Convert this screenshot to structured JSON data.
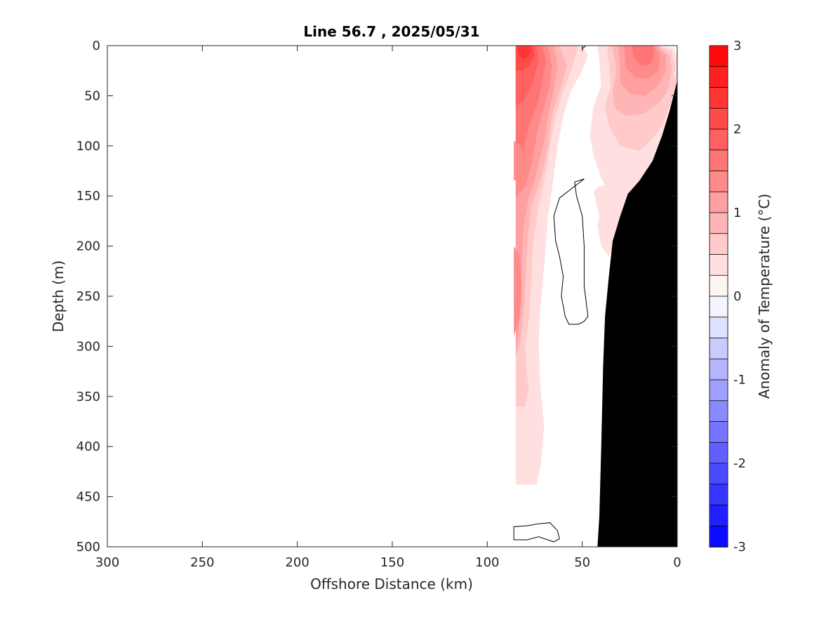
{
  "chart_data": {
    "type": "heatmap",
    "title": "Line 56.7 , 2025/05/31",
    "xlabel": "Offshore Distance (km)",
    "ylabel": "Depth (m)",
    "colorbar_label": "Anomaly of Temperature (°C)",
    "xlim": [
      300,
      0
    ],
    "ylim": [
      0,
      500
    ],
    "x_reversed": true,
    "y_reversed": true,
    "xticks": [
      {
        "value": 300,
        "label": "300"
      },
      {
        "value": 250,
        "label": "250"
      },
      {
        "value": 200,
        "label": "200"
      },
      {
        "value": 150,
        "label": "150"
      },
      {
        "value": 100,
        "label": "100"
      },
      {
        "value": 50,
        "label": "50"
      },
      {
        "value": 0,
        "label": "0"
      }
    ],
    "yticks": [
      {
        "value": 0,
        "label": "0"
      },
      {
        "value": 50,
        "label": "50"
      },
      {
        "value": 100,
        "label": "100"
      },
      {
        "value": 150,
        "label": "150"
      },
      {
        "value": 200,
        "label": "200"
      },
      {
        "value": 250,
        "label": "250"
      },
      {
        "value": 300,
        "label": "300"
      },
      {
        "value": 350,
        "label": "350"
      },
      {
        "value": 400,
        "label": "400"
      },
      {
        "value": 450,
        "label": "450"
      },
      {
        "value": 500,
        "label": "500"
      }
    ],
    "colorbar": {
      "clim": [
        -3,
        3
      ],
      "levels": 24,
      "low_color": "#0000ff",
      "mid_color": "#ffffff",
      "high_color": "#ff0000",
      "ticks": [
        {
          "value": 3,
          "label": "3"
        },
        {
          "value": 2,
          "label": "2"
        },
        {
          "value": 1,
          "label": "1"
        },
        {
          "value": 0,
          "label": "0"
        },
        {
          "value": -1,
          "label": "-1"
        },
        {
          "value": -2,
          "label": "-2"
        },
        {
          "value": -3,
          "label": "-3"
        }
      ]
    },
    "data_extent": {
      "x_max": 85,
      "y_max_at_offshore_edge": 410
    },
    "shelf_color": "#000000",
    "shelf": [
      [
        0,
        35
      ],
      [
        4,
        65
      ],
      [
        8,
        90
      ],
      [
        13,
        115
      ],
      [
        20,
        135
      ],
      [
        26,
        148
      ],
      [
        30,
        170
      ],
      [
        34,
        195
      ],
      [
        36,
        230
      ],
      [
        38,
        270
      ],
      [
        39,
        320
      ],
      [
        40,
        400
      ],
      [
        41,
        470
      ],
      [
        42,
        500
      ],
      [
        0,
        500
      ]
    ],
    "anomaly_regions": [
      {
        "value": 0.375,
        "points": [
          [
            85,
            0
          ],
          [
            70,
            0
          ],
          [
            58,
            0
          ],
          [
            50,
            0
          ],
          [
            47,
            10
          ],
          [
            50,
            25
          ],
          [
            56,
            45
          ],
          [
            60,
            70
          ],
          [
            63,
            100
          ],
          [
            65,
            130
          ],
          [
            68,
            170
          ],
          [
            70,
            220
          ],
          [
            72,
            260
          ],
          [
            73,
            300
          ],
          [
            72,
            340
          ],
          [
            70,
            380
          ],
          [
            72,
            420
          ],
          [
            74,
            438
          ],
          [
            85,
            438
          ]
        ]
      },
      {
        "value": 0.375,
        "points": [
          [
            42,
            0
          ],
          [
            25,
            0
          ],
          [
            10,
            0
          ],
          [
            2,
            2
          ],
          [
            0,
            10
          ],
          [
            0,
            35
          ],
          [
            4,
            65
          ],
          [
            8,
            90
          ],
          [
            13,
            115
          ],
          [
            20,
            135
          ],
          [
            26,
            148
          ],
          [
            30,
            170
          ],
          [
            32,
            195
          ],
          [
            36,
            210
          ],
          [
            40,
            200
          ],
          [
            42,
            180
          ],
          [
            41,
            170
          ],
          [
            44,
            145
          ],
          [
            41,
            140
          ],
          [
            38,
            140
          ],
          [
            40,
            132
          ],
          [
            44,
            110
          ],
          [
            46,
            90
          ],
          [
            44,
            60
          ],
          [
            40,
            40
          ],
          [
            41,
            15
          ]
        ]
      },
      {
        "value": 0.625,
        "points": [
          [
            85,
            0
          ],
          [
            70,
            0
          ],
          [
            60,
            0
          ],
          [
            52,
            0
          ],
          [
            55,
            20
          ],
          [
            60,
            45
          ],
          [
            64,
            70
          ],
          [
            67,
            100
          ],
          [
            69,
            125
          ],
          [
            73,
            160
          ],
          [
            76,
            200
          ],
          [
            77,
            240
          ],
          [
            78,
            270
          ],
          [
            80,
            300
          ],
          [
            79,
            330
          ],
          [
            78,
            340
          ],
          [
            80,
            360
          ],
          [
            85,
            360
          ]
        ]
      },
      {
        "value": 0.625,
        "points": [
          [
            37,
            0
          ],
          [
            25,
            0
          ],
          [
            10,
            0
          ],
          [
            3,
            5
          ],
          [
            1,
            20
          ],
          [
            2,
            30
          ],
          [
            0,
            35
          ],
          [
            4,
            60
          ],
          [
            8,
            80
          ],
          [
            14,
            95
          ],
          [
            20,
            105
          ],
          [
            30,
            100
          ],
          [
            36,
            80
          ],
          [
            38,
            60
          ],
          [
            35,
            40
          ],
          [
            36,
            15
          ]
        ]
      },
      {
        "value": 0.875,
        "points": [
          [
            85,
            0
          ],
          [
            72,
            0
          ],
          [
            62,
            0
          ],
          [
            58,
            20
          ],
          [
            62,
            45
          ],
          [
            66,
            70
          ],
          [
            68,
            100
          ],
          [
            70,
            120
          ],
          [
            73,
            140
          ],
          [
            77,
            160
          ],
          [
            79,
            200
          ],
          [
            80,
            240
          ],
          [
            81,
            270
          ],
          [
            83,
            300
          ],
          [
            85,
            310
          ]
        ]
      },
      {
        "value": 0.875,
        "points": [
          [
            34,
            0
          ],
          [
            22,
            0
          ],
          [
            10,
            0
          ],
          [
            4,
            10
          ],
          [
            3,
            25
          ],
          [
            5,
            45
          ],
          [
            10,
            58
          ],
          [
            18,
            68
          ],
          [
            27,
            70
          ],
          [
            33,
            62
          ],
          [
            34,
            45
          ],
          [
            32,
            25
          ]
        ]
      },
      {
        "value": 1.125,
        "points": [
          [
            85,
            0
          ],
          [
            72,
            0
          ],
          [
            65,
            0
          ],
          [
            63,
            20
          ],
          [
            65,
            45
          ],
          [
            68,
            70
          ],
          [
            70,
            95
          ],
          [
            72,
            110
          ],
          [
            75,
            135
          ],
          [
            78,
            150
          ],
          [
            81,
            180
          ],
          [
            82,
            230
          ],
          [
            82,
            260
          ],
          [
            84,
            290
          ],
          [
            85,
            300
          ]
        ]
      },
      {
        "value": 1.125,
        "points": [
          [
            31,
            0
          ],
          [
            21,
            0
          ],
          [
            11,
            0
          ],
          [
            6,
            10
          ],
          [
            6,
            25
          ],
          [
            10,
            40
          ],
          [
            17,
            50
          ],
          [
            25,
            48
          ],
          [
            30,
            38
          ],
          [
            30,
            20
          ]
        ]
      },
      {
        "value": 1.375,
        "points": [
          [
            85,
            0
          ],
          [
            76,
            0
          ],
          [
            68,
            0
          ],
          [
            66,
            20
          ],
          [
            67,
            40
          ],
          [
            70,
            60
          ],
          [
            73,
            80
          ],
          [
            75,
            100
          ],
          [
            77,
            120
          ],
          [
            80,
            140
          ],
          [
            84,
            150
          ],
          [
            85,
            150
          ]
        ]
      },
      {
        "value": 1.375,
        "points": [
          [
            28,
            0
          ],
          [
            20,
            0
          ],
          [
            12,
            0
          ],
          [
            9,
            10
          ],
          [
            10,
            25
          ],
          [
            15,
            33
          ],
          [
            22,
            32
          ],
          [
            27,
            22
          ]
        ]
      },
      {
        "value": 1.625,
        "points": [
          [
            85,
            0
          ],
          [
            78,
            0
          ],
          [
            71,
            0
          ],
          [
            69,
            15
          ],
          [
            71,
            35
          ],
          [
            73,
            55
          ],
          [
            76,
            70
          ],
          [
            78,
            80
          ],
          [
            80,
            95
          ],
          [
            82,
            110
          ],
          [
            85,
            130
          ]
        ]
      },
      {
        "value": 1.625,
        "points": [
          [
            24,
            0
          ],
          [
            18,
            0
          ],
          [
            13,
            0
          ],
          [
            12,
            10
          ],
          [
            14,
            18
          ],
          [
            19,
            20
          ],
          [
            23,
            12
          ]
        ]
      },
      {
        "value": 1.875,
        "points": [
          [
            85,
            0
          ],
          [
            80,
            0
          ],
          [
            74,
            0
          ],
          [
            73,
            15
          ],
          [
            75,
            30
          ],
          [
            78,
            45
          ],
          [
            81,
            55
          ],
          [
            85,
            60
          ]
        ]
      },
      {
        "value": 2.125,
        "points": [
          [
            85,
            0
          ],
          [
            80,
            0
          ],
          [
            76,
            0
          ],
          [
            75,
            10
          ],
          [
            78,
            20
          ],
          [
            82,
            25
          ],
          [
            85,
            25
          ]
        ]
      },
      {
        "value": 2.375,
        "points": [
          [
            84,
            0
          ],
          [
            80,
            0
          ],
          [
            77,
            0
          ],
          [
            77,
            7
          ],
          [
            80,
            13
          ],
          [
            83,
            12
          ],
          [
            84,
            5
          ]
        ]
      },
      {
        "value": 1.375,
        "points": [
          [
            86,
            95
          ],
          [
            82,
            100
          ],
          [
            81,
            115
          ],
          [
            82,
            130
          ],
          [
            86,
            135
          ]
        ]
      },
      {
        "value": 1.375,
        "points": [
          [
            86,
            200
          ],
          [
            83,
            210
          ],
          [
            82,
            240
          ],
          [
            83,
            270
          ],
          [
            86,
            290
          ]
        ]
      }
    ],
    "contours_zero": [
      {
        "closed": true,
        "points": [
          [
            49,
            133
          ],
          [
            54,
            136
          ],
          [
            53,
            150
          ],
          [
            50,
            170
          ],
          [
            49,
            200
          ],
          [
            49,
            240
          ],
          [
            47,
            270
          ],
          [
            49,
            275
          ],
          [
            52,
            278
          ],
          [
            57,
            278
          ],
          [
            59,
            270
          ],
          [
            61,
            250
          ],
          [
            60,
            230
          ],
          [
            62,
            210
          ],
          [
            64,
            195
          ],
          [
            65,
            170
          ],
          [
            62,
            152
          ]
        ]
      },
      {
        "closed": true,
        "points": [
          [
            73,
            477
          ],
          [
            67,
            476
          ],
          [
            63,
            484
          ],
          [
            62,
            492
          ],
          [
            65,
            495
          ],
          [
            73,
            490
          ],
          [
            79,
            493
          ],
          [
            86,
            493
          ],
          [
            86,
            480
          ],
          [
            79,
            479
          ]
        ]
      },
      {
        "closed": false,
        "points": [
          [
            26,
            240
          ],
          [
            32,
            255
          ],
          [
            36,
            265
          ],
          [
            35,
            300
          ],
          [
            36,
            340
          ],
          [
            37,
            380
          ],
          [
            34,
            390
          ]
        ]
      },
      {
        "closed": false,
        "points": [
          [
            48,
            0
          ],
          [
            50,
            3
          ],
          [
            50,
            0
          ]
        ]
      }
    ]
  }
}
